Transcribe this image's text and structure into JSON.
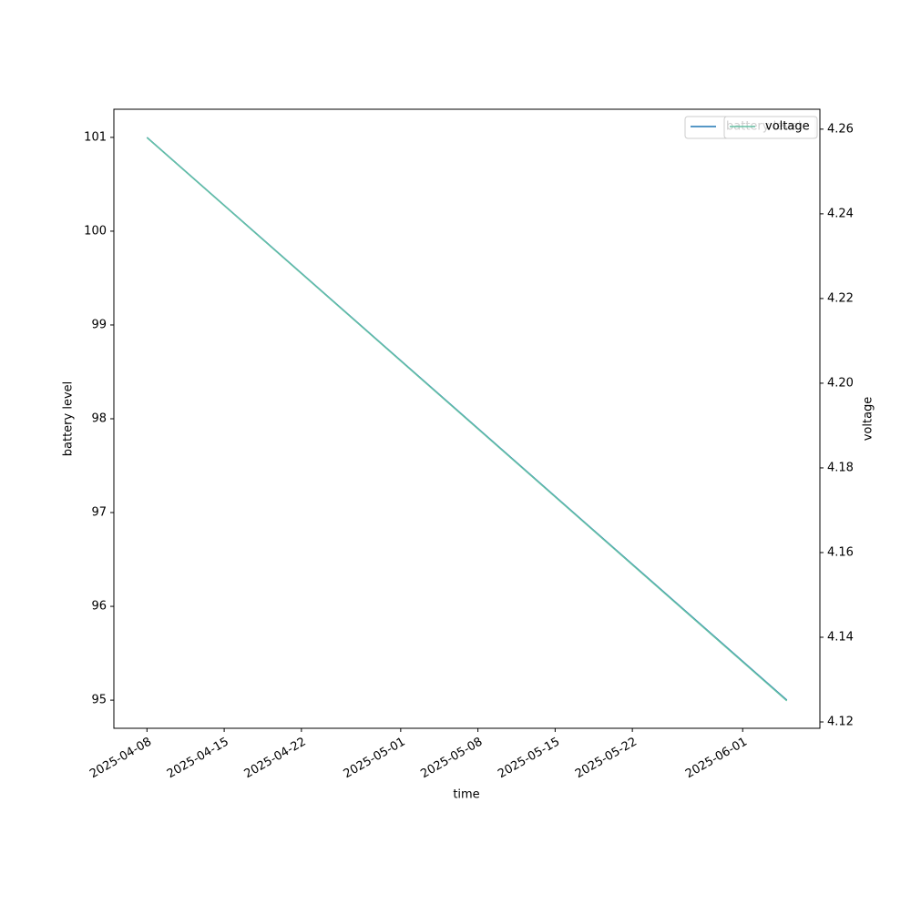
{
  "chart_data": {
    "type": "line",
    "x": [
      "2025-04-08",
      "2025-06-05"
    ],
    "series": [
      {
        "name": "battery level",
        "color": "#1f77b4",
        "values": [
          101,
          95
        ],
        "axis": "y"
      },
      {
        "name": "voltage",
        "color": "#66c2a5",
        "values": [
          4.258,
          4.125
        ],
        "axis": "y2"
      }
    ],
    "xlabel": "time",
    "ylabel": "battery level",
    "y2label": "voltage",
    "xlim": [
      "2025-04-05",
      "2025-06-08"
    ],
    "xticks": [
      "2025-04-08",
      "2025-04-15",
      "2025-04-22",
      "2025-05-01",
      "2025-05-08",
      "2025-05-15",
      "2025-05-22",
      "2025-06-01"
    ],
    "ylim": [
      94.7,
      101.3
    ],
    "yticks": [
      95,
      96,
      97,
      98,
      99,
      100,
      101
    ],
    "y2lim": [
      4.1185,
      4.2647
    ],
    "y2ticks": [
      4.12,
      4.14,
      4.16,
      4.18,
      {
        "value": 4.2,
        "label": "4.20"
      },
      4.22,
      4.24,
      4.26
    ],
    "legend": "upper right"
  }
}
